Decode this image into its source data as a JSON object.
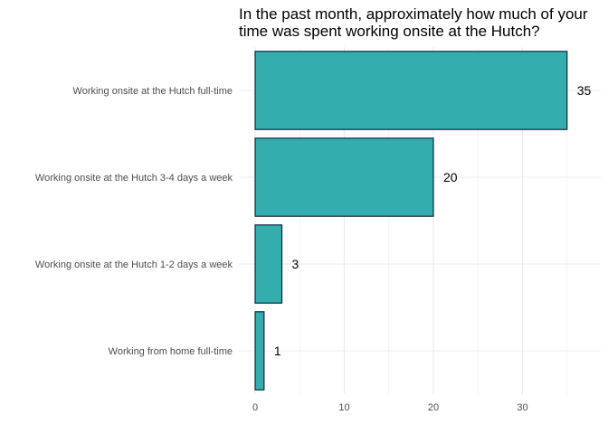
{
  "chart_data": {
    "type": "bar",
    "orientation": "horizontal",
    "title_lines": [
      "In the past month, approximately how much of your",
      "time was spent working onsite at the Hutch?"
    ],
    "categories": [
      "Working onsite at the Hutch full-time",
      "Working onsite at the Hutch 3-4 days a week",
      "Working onsite at the Hutch 1-2 days a week",
      "Working from home full-time"
    ],
    "values": [
      35,
      20,
      3,
      1
    ],
    "data_labels": [
      "35",
      "20",
      "3",
      "1"
    ],
    "xlabel": "",
    "ylabel": "",
    "x_ticks": [
      0,
      10,
      20,
      30
    ],
    "x_tick_labels": [
      "0",
      "10",
      "20",
      "30"
    ],
    "xlim": [
      0,
      38.5
    ],
    "grid": true,
    "legend": "none",
    "colors": {
      "bar_fill": "#33adad",
      "bar_stroke": "#0d2a3a",
      "grid": "#ebebeb"
    }
  }
}
